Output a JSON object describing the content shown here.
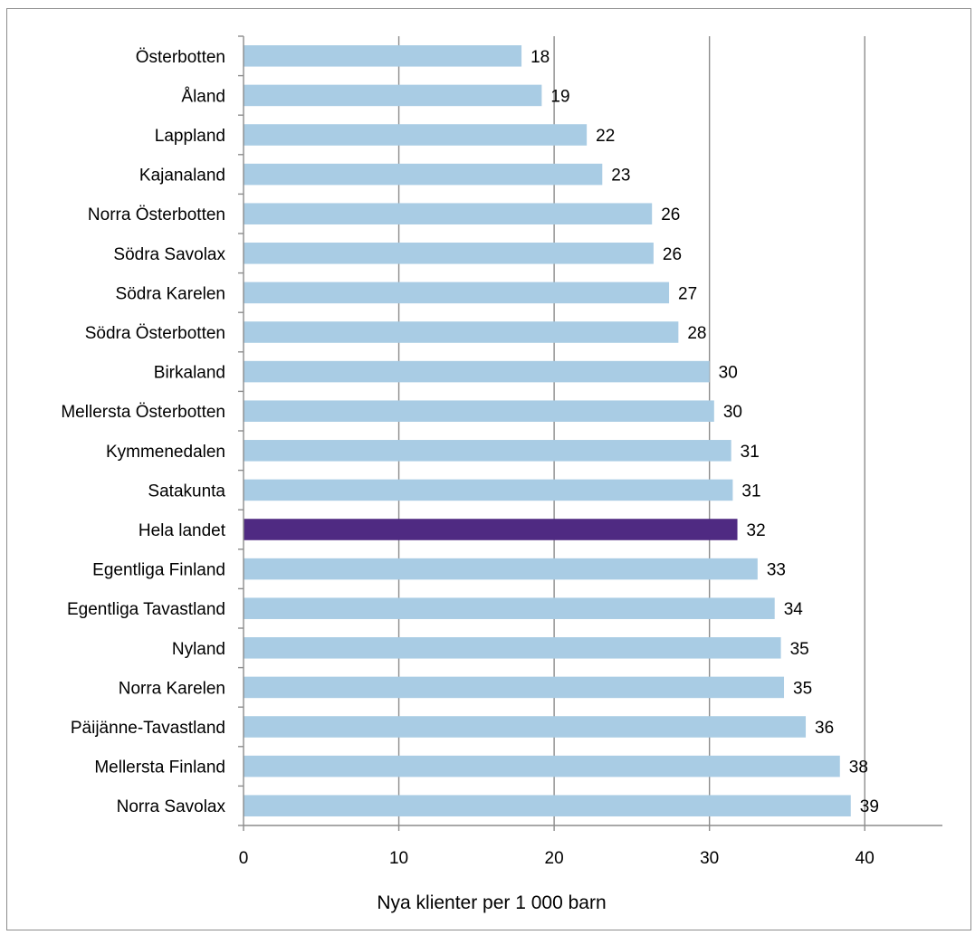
{
  "chart_data": {
    "type": "bar",
    "orientation": "horizontal",
    "categories": [
      "Österbotten",
      "Åland",
      "Lappland",
      "Kajanaland",
      "Norra Österbotten",
      "Södra Savolax",
      "Södra Karelen",
      "Södra Österbotten",
      "Birkaland",
      "Mellersta Österbotten",
      "Kymmenedalen",
      "Satakunta",
      "Hela landet",
      "Egentliga Finland",
      "Egentliga Tavastland",
      "Nyland",
      "Norra Karelen",
      "Päijänne-Tavastland",
      "Mellersta Finland",
      "Norra Savolax"
    ],
    "values": [
      17.9,
      19.2,
      22.1,
      23.1,
      26.3,
      26.4,
      27.4,
      28.0,
      30.0,
      30.3,
      31.4,
      31.5,
      31.8,
      33.1,
      34.2,
      34.6,
      34.8,
      36.2,
      38.4,
      39.1
    ],
    "value_labels": [
      "18",
      "19",
      "22",
      "23",
      "26",
      "26",
      "27",
      "28",
      "30",
      "30",
      "31",
      "31",
      "32",
      "33",
      "34",
      "35",
      "35",
      "36",
      "38",
      "39"
    ],
    "highlight_category": "Hela landet",
    "colors": {
      "bar": "#a9cce4",
      "highlight": "#4f2a82",
      "grid": "#8c8c8c",
      "axis": "#8c8c8c",
      "frame": "#8c8c8c"
    },
    "xlabel": "Nya klienter per 1 000 barn",
    "ylabel": "",
    "title": "",
    "xlim": [
      0,
      45
    ],
    "xticks": [
      0,
      10,
      20,
      30,
      40
    ],
    "xtick_labels": [
      "0",
      "10",
      "20",
      "30",
      "40"
    ],
    "grid": "vertical",
    "legend": "none"
  }
}
